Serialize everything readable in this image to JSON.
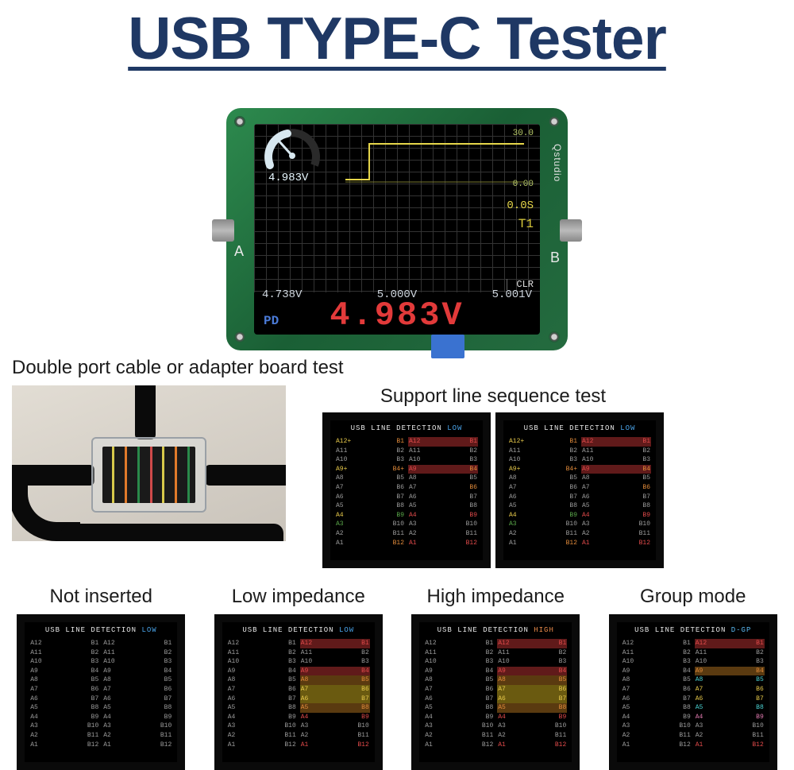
{
  "title": "USB TYPE-C Tester",
  "title_color": "#1f3864",
  "device": {
    "brand": "Qstudio",
    "port_a_label": "A",
    "port_b_label": "B",
    "gauge_voltage": "4.983V",
    "axis_top": "30.0",
    "axis_bottom": "0.00",
    "time_label": "0.0S",
    "t_label": "T1",
    "clr_label": "CLR",
    "v1": "4.738V",
    "v2": "5.000V",
    "v3": "5.001V",
    "pd_label": "PD",
    "big_voltage": "4.983V",
    "big_voltage_color": "#e23a3a",
    "pcb_color": "#1a6b3a",
    "lcd_bg": "#000000",
    "grid_color": "#333333",
    "chart_line_color": "#e6d64a"
  },
  "captions": {
    "double_port": "Double port cable or adapter board test",
    "support_seq": "Support line sequence test",
    "not_inserted": "Not inserted",
    "low_imp": "Low impedance",
    "high_imp": "High impedance",
    "group_mode": "Group mode"
  },
  "detection": {
    "header_text": "USB LINE DETECTION",
    "mode_low": "LOW",
    "mode_high": "HIGH",
    "mode_group": "D-GP",
    "pins_a": [
      "A12",
      "A11",
      "A10",
      "A9",
      "A8",
      "A7",
      "A6",
      "A5",
      "A4",
      "A3",
      "A2",
      "A1"
    ],
    "pins_b_left": [
      "B1",
      "B2",
      "B3",
      "B4",
      "B5",
      "B6",
      "B7",
      "B8",
      "B9",
      "B10",
      "B11",
      "B12"
    ],
    "pins_a_right": [
      "A12",
      "A11",
      "A10",
      "A9",
      "A8",
      "A7",
      "A6",
      "A5",
      "A4",
      "A3",
      "A2",
      "A1"
    ],
    "pins_b_right": [
      "B1",
      "B2",
      "B3",
      "B4",
      "B5",
      "B6",
      "B7",
      "B8",
      "B9",
      "B10",
      "B11",
      "B12"
    ],
    "colors": {
      "gray": "#9a9a9a",
      "yellow": "#e6c84a",
      "orange": "#e08a3a",
      "red": "#e04a4a",
      "green": "#5aa84a",
      "cyan": "#4ad0d0",
      "pink": "#e07ab0",
      "white": "#e8e8e8"
    }
  }
}
